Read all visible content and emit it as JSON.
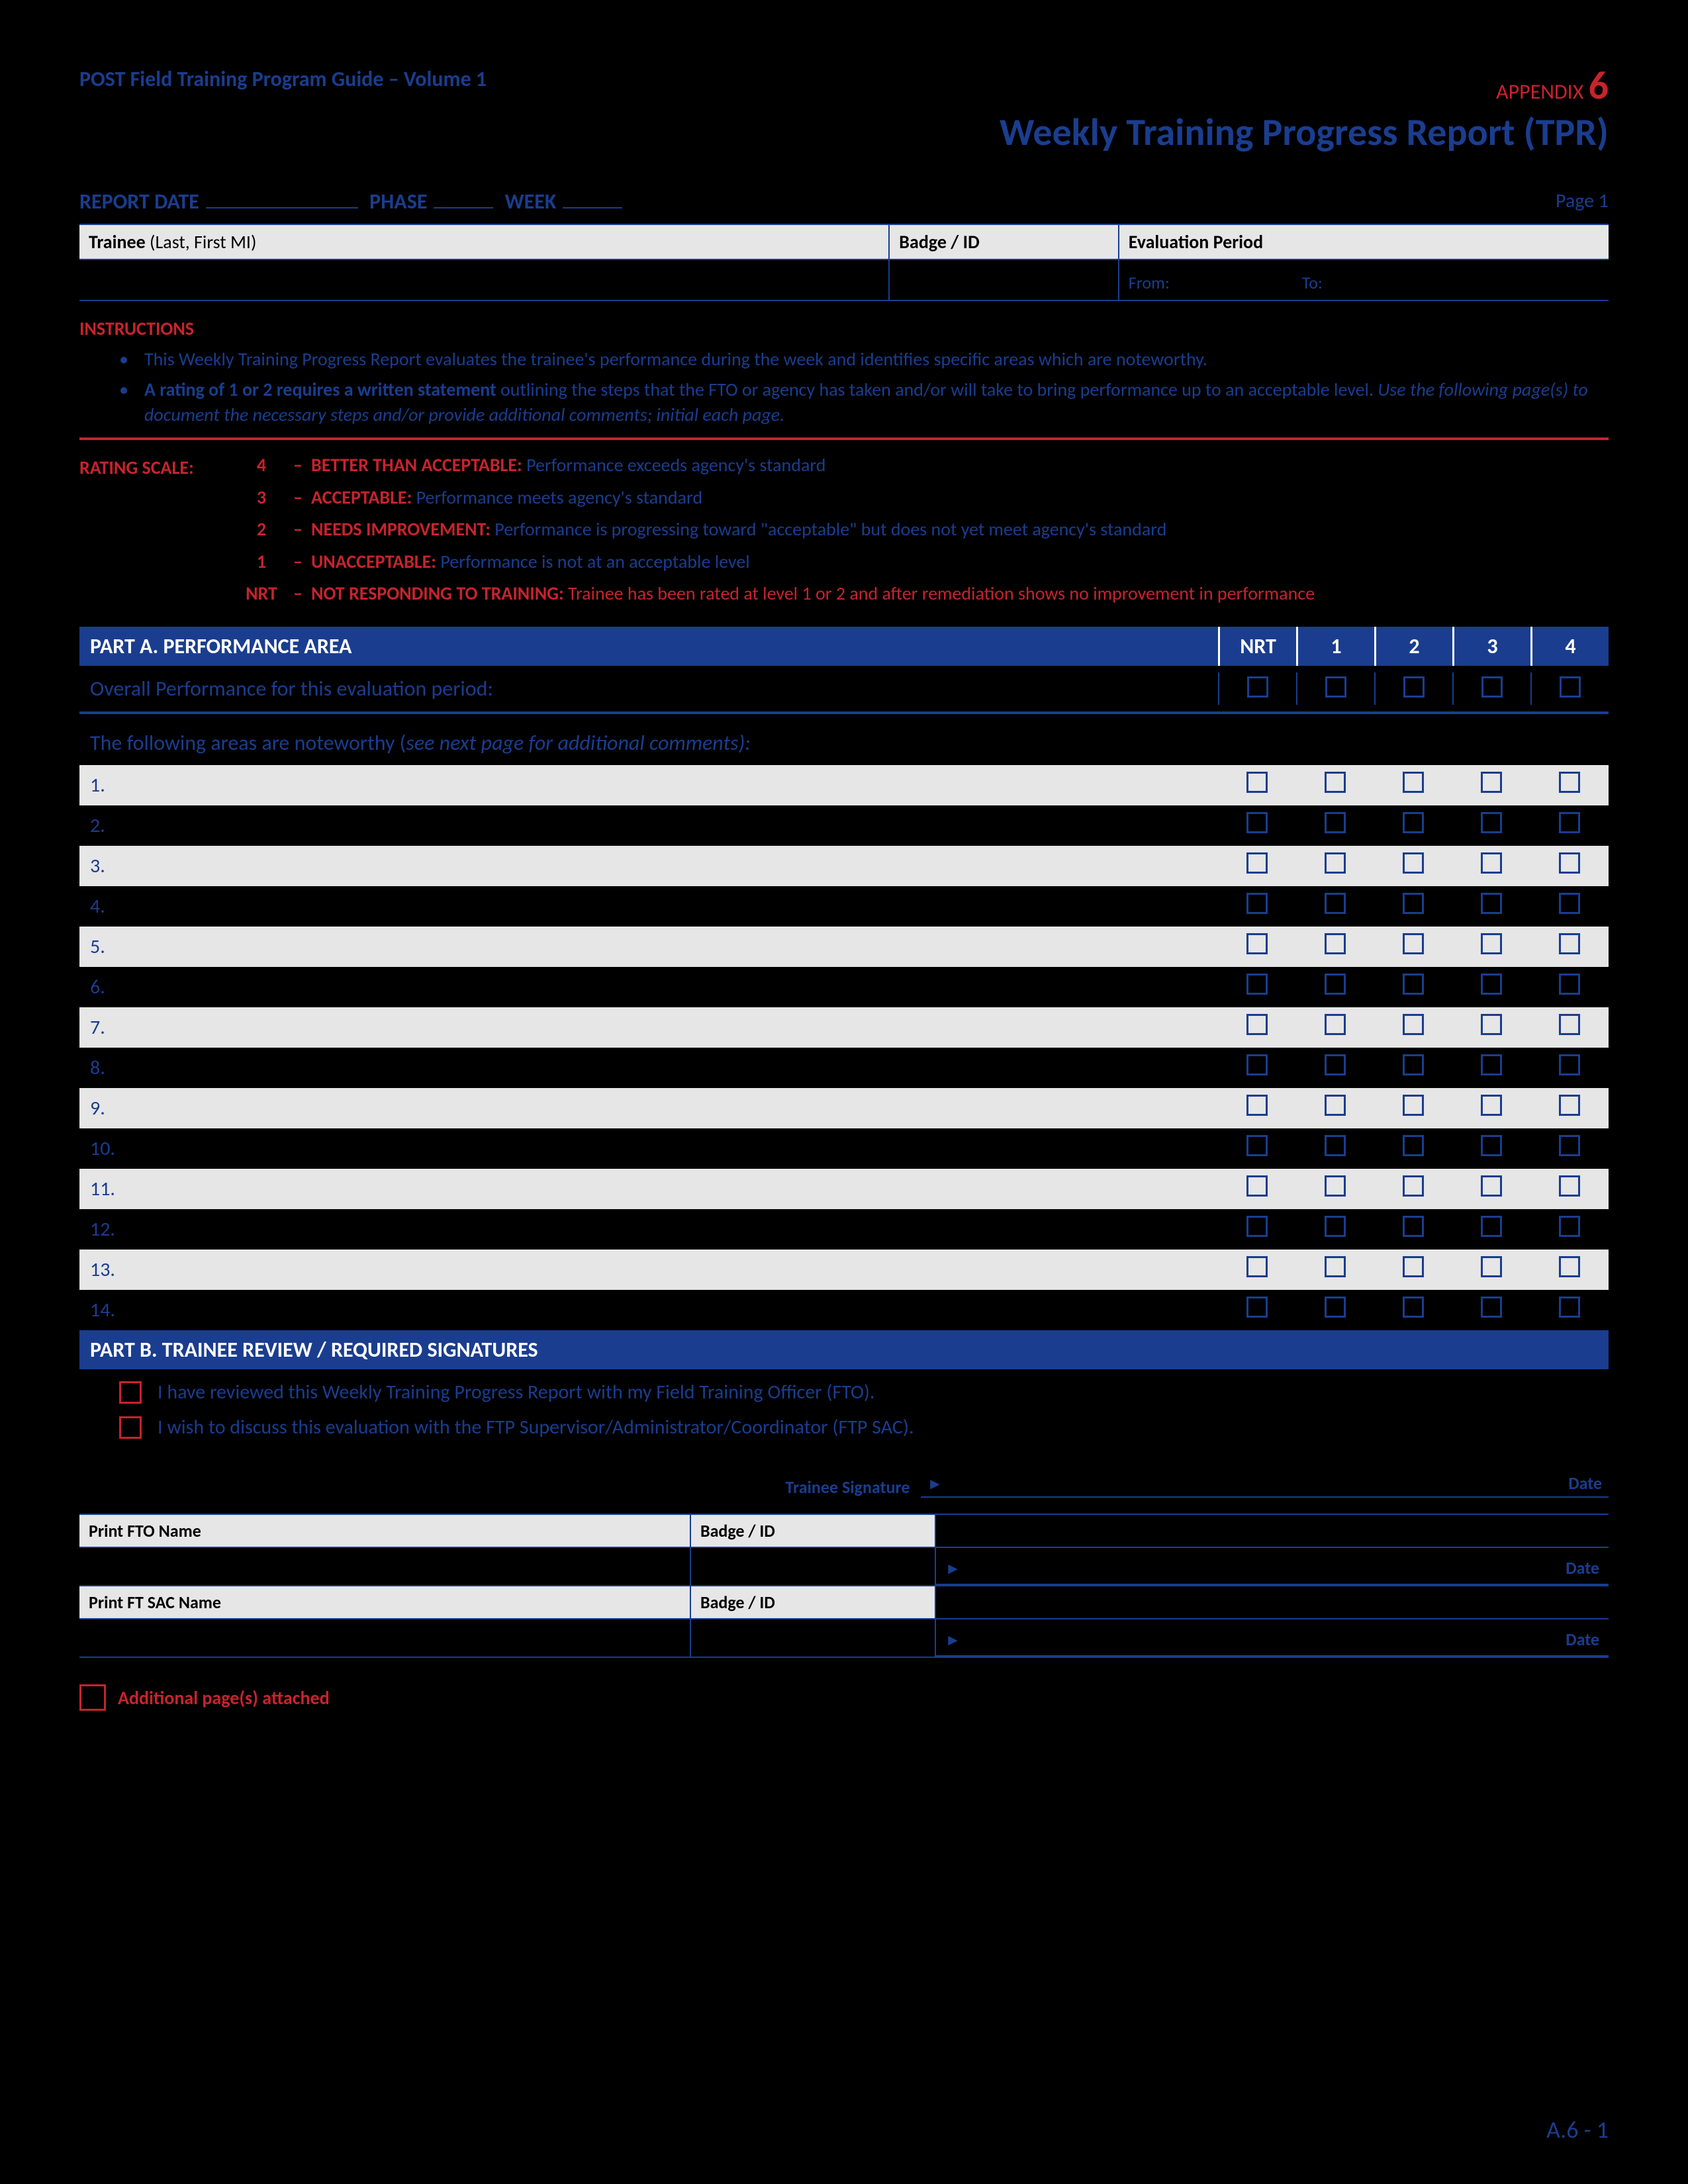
{
  "header": {
    "guide_title": "POST Field Training Program Guide – Volume 1",
    "appendix_label": "APPENDIX",
    "appendix_num": "6",
    "main_title": "Weekly Training Progress Report (TPR)"
  },
  "report_line": {
    "report_date": "REPORT DATE",
    "phase": "PHASE",
    "week": "WEEK",
    "page": "Page 1"
  },
  "id_headers": {
    "trainee_bold": "Trainee",
    "trainee_rest": "(Last, First MI)",
    "badge": "Badge / ID",
    "eval": "Evaluation Period",
    "from": "From:",
    "to": "To:"
  },
  "instructions": {
    "heading": "INSTRUCTIONS",
    "item1": "This Weekly Training Progress Report evaluates the trainee's performance during the week and identifies specific areas which are noteworthy.",
    "item2_b": "A rating of 1 or 2 requires a written statement",
    "item2_rest": " outlining the steps that the FTO or agency has taken and/or will take to bring performance up to an acceptable level.",
    "item2_i": " Use the following page(s) to document the necessary steps and/or provide additional comments; initial each page."
  },
  "rating_scale": {
    "label": "RATING SCALE:",
    "r4_b": "BETTER THAN ACCEPTABLE:",
    "r4": " Performance exceeds agency's standard",
    "r3_b": "ACCEPTABLE:",
    "r3": " Performance meets agency's standard",
    "r2_b": "NEEDS IMPROVEMENT:",
    "r2": " Performance is progressing toward \"acceptable\" but does not yet meet agency's standard",
    "r1_b": "UNACCEPTABLE:",
    "r1": " Performance is not at an acceptable level",
    "nrt_b": "NOT RESPONDING TO TRAINING:",
    "nrt": " Trainee has been rated at level 1 or 2 and after remediation shows no improvement in performance"
  },
  "part_a": {
    "title": "PART A.  PERFORMANCE AREA",
    "cols": {
      "nrt": "NRT",
      "c1": "1",
      "c2": "2",
      "c3": "3",
      "c4": "4"
    },
    "overall": "Overall Performance for this evaluation period:",
    "noteworthy_a": "The following areas are noteworthy (",
    "noteworthy_i": "see next page for additional comments):",
    "rows": [
      "1.",
      "2.",
      "3.",
      "4.",
      "5.",
      "6.",
      "7.",
      "8.",
      "9.",
      "10.",
      "11.",
      "12.",
      "13.",
      "14."
    ]
  },
  "part_b": {
    "title": "PART B.  TRAINEE REVIEW / REQUIRED SIGNATURES",
    "line1": "I have reviewed this Weekly Training Progress Report with my Field Training Officer (FTO).",
    "line2": "I wish to discuss this evaluation with the FTP Supervisor/Administrator/Coordinator (FTP SAC).",
    "trainee_sig": "Trainee Signature",
    "date": "Date",
    "fto_name": "Print FTO Name",
    "badge": "Badge / ID",
    "sac_name": "Print FT SAC Name"
  },
  "additional": "Additional page(s) attached",
  "footer": "A.6 - 1"
}
